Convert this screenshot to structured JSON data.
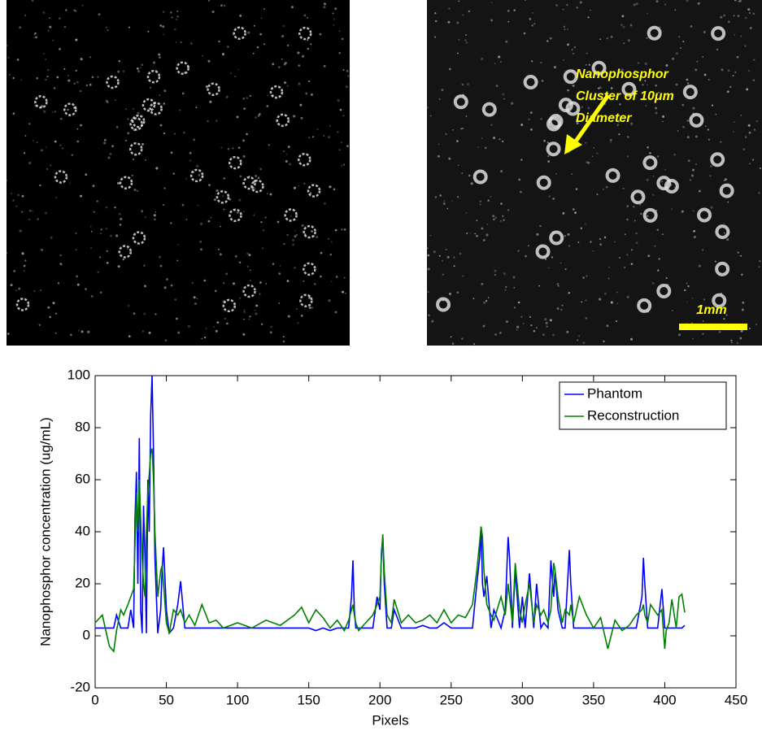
{
  "panels": {
    "annotation": [
      "Nanophosphor",
      "Cluster of 10μm",
      "Diameter"
    ],
    "scale_bar": "1mm"
  },
  "chart_data": {
    "type": "line",
    "xlabel": "Pixels",
    "ylabel": "Nanophosphor concentration (ug/mL)",
    "x": [
      0,
      5,
      10,
      13,
      15,
      18,
      20,
      23,
      25,
      27,
      28,
      29,
      30,
      31,
      32,
      33,
      34,
      35,
      36,
      37,
      38,
      39,
      40,
      41,
      42,
      44,
      46,
      47,
      48,
      50,
      52,
      55,
      58,
      60,
      63,
      66,
      70,
      75,
      80,
      85,
      90,
      95,
      100,
      110,
      120,
      130,
      140,
      145,
      150,
      155,
      160,
      165,
      170,
      175,
      178,
      180,
      181,
      182,
      183,
      185,
      190,
      195,
      198,
      200,
      201,
      202,
      203,
      205,
      208,
      210,
      215,
      220,
      225,
      230,
      235,
      240,
      245,
      250,
      255,
      260,
      265,
      268,
      270,
      271,
      272,
      273,
      275,
      278,
      280,
      285,
      288,
      290,
      291,
      293,
      295,
      298,
      300,
      302,
      305,
      308,
      310,
      313,
      315,
      318,
      320,
      322,
      323,
      325,
      328,
      330,
      333,
      334,
      336,
      340,
      345,
      350,
      355,
      360,
      365,
      370,
      375,
      380,
      384,
      385,
      386,
      388,
      390,
      395,
      398,
      400,
      401,
      403,
      405,
      408,
      410,
      412,
      414
    ],
    "series": [
      {
        "name": "Phantom",
        "color": "#0000ff",
        "values": [
          3,
          3,
          3,
          3,
          8,
          3,
          3,
          3,
          10,
          3,
          45,
          63,
          20,
          76,
          10,
          1,
          50,
          30,
          1,
          60,
          40,
          85,
          100,
          70,
          30,
          1,
          10,
          25,
          34,
          10,
          1,
          3,
          12,
          21,
          3,
          3,
          3,
          3,
          3,
          3,
          3,
          3,
          3,
          3,
          3,
          3,
          3,
          3,
          3,
          2,
          3,
          2,
          3,
          3,
          3,
          15,
          29,
          10,
          3,
          3,
          3,
          3,
          15,
          10,
          32,
          38,
          20,
          3,
          3,
          10,
          3,
          3,
          3,
          4,
          3,
          3,
          5,
          3,
          3,
          3,
          3,
          20,
          30,
          42,
          20,
          15,
          23,
          3,
          10,
          3,
          10,
          38,
          30,
          3,
          25,
          3,
          15,
          3,
          24,
          3,
          20,
          3,
          5,
          3,
          29,
          15,
          25,
          10,
          3,
          3,
          33,
          20,
          3,
          3,
          3,
          3,
          3,
          3,
          3,
          3,
          3,
          3,
          15,
          30,
          20,
          3,
          3,
          3,
          18,
          3,
          3,
          3,
          3,
          3,
          3,
          3,
          4
        ]
      },
      {
        "name": "Reconstruction",
        "color": "#008000",
        "values": [
          5,
          8,
          -4,
          -6,
          2,
          10,
          8,
          12,
          15,
          18,
          35,
          55,
          40,
          60,
          45,
          30,
          20,
          15,
          40,
          55,
          62,
          70,
          72,
          60,
          40,
          15,
          25,
          27,
          20,
          5,
          1,
          10,
          8,
          10,
          5,
          8,
          4,
          12,
          5,
          6,
          3,
          4,
          5,
          3,
          6,
          4,
          8,
          11,
          5,
          10,
          7,
          3,
          6,
          2,
          6,
          10,
          12,
          8,
          5,
          2,
          5,
          8,
          12,
          15,
          30,
          39,
          25,
          8,
          5,
          14,
          5,
          8,
          5,
          6,
          8,
          5,
          10,
          5,
          8,
          7,
          12,
          25,
          36,
          42,
          38,
          25,
          12,
          8,
          6,
          15,
          8,
          20,
          15,
          5,
          28,
          10,
          5,
          12,
          20,
          5,
          12,
          8,
          10,
          5,
          10,
          28,
          25,
          15,
          5,
          10,
          8,
          12,
          5,
          15,
          8,
          3,
          7,
          -5,
          6,
          2,
          4,
          8,
          10,
          12,
          8,
          5,
          12,
          8,
          10,
          -5,
          2,
          5,
          14,
          3,
          15,
          16,
          9
        ]
      }
    ],
    "xlim": [
      0,
      450
    ],
    "xticks": [
      0,
      50,
      100,
      150,
      200,
      250,
      300,
      350,
      400,
      450
    ],
    "ylim": [
      -20,
      100
    ],
    "yticks": [
      -20,
      0,
      20,
      40,
      60,
      80,
      100
    ],
    "legend": "upper right",
    "grid": false
  }
}
